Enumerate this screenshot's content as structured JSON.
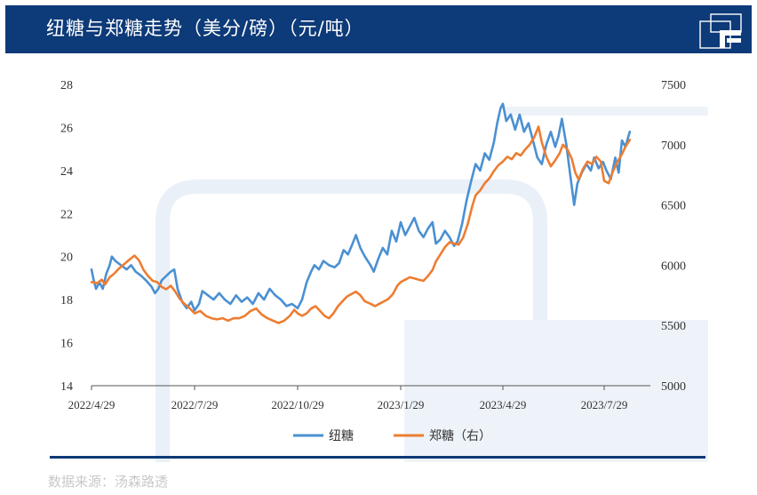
{
  "header": {
    "title": "纽糖与郑糖走势（美分/磅）（元/吨）"
  },
  "source": {
    "text": "数据来源：汤森路透"
  },
  "colors": {
    "header_bg": "#0d3a78",
    "series_ice": "#4a90d2",
    "series_zce": "#ed7d31",
    "axis": "#555555"
  },
  "chart_data": {
    "type": "line",
    "title": "纽糖与郑糖走势（美分/磅）（元/吨）",
    "x_tick_labels": [
      "2022/4/29",
      "2022/7/29",
      "2022/10/29",
      "2023/1/29",
      "2023/4/29",
      "2023/7/29"
    ],
    "x_range": [
      "2022/4/29",
      "2023/8/21"
    ],
    "y_left": {
      "ticks": [
        "14",
        "16",
        "18",
        "20",
        "22",
        "24",
        "26",
        "28"
      ],
      "range": [
        14,
        28
      ],
      "unit": "美分/磅"
    },
    "y_right": {
      "ticks": [
        "5000",
        "5500",
        "6000",
        "6500",
        "7000",
        "7500"
      ],
      "range": [
        5000,
        7500
      ],
      "unit": "元/吨"
    },
    "legend_position": "bottom",
    "grid": false,
    "series": [
      {
        "name": "纽糖",
        "axis": "left",
        "points": [
          [
            "2022-04-29",
            19.4
          ],
          [
            "2022-05-01",
            18.9
          ],
          [
            "2022-05-03",
            18.5
          ],
          [
            "2022-05-06",
            18.8
          ],
          [
            "2022-05-09",
            18.5
          ],
          [
            "2022-05-12",
            19.2
          ],
          [
            "2022-05-15",
            19.6
          ],
          [
            "2022-05-17",
            20.0
          ],
          [
            "2022-05-20",
            19.8
          ],
          [
            "2022-05-25",
            19.6
          ],
          [
            "2022-05-30",
            19.4
          ],
          [
            "2022-06-03",
            19.6
          ],
          [
            "2022-06-07",
            19.3
          ],
          [
            "2022-06-12",
            19.1
          ],
          [
            "2022-06-16",
            18.9
          ],
          [
            "2022-06-21",
            18.6
          ],
          [
            "2022-06-24",
            18.3
          ],
          [
            "2022-06-27",
            18.5
          ],
          [
            "2022-06-30",
            18.9
          ],
          [
            "2022-07-04",
            19.1
          ],
          [
            "2022-07-08",
            19.3
          ],
          [
            "2022-07-11",
            19.4
          ],
          [
            "2022-07-14",
            18.5
          ],
          [
            "2022-07-18",
            17.9
          ],
          [
            "2022-07-22",
            17.6
          ],
          [
            "2022-07-26",
            17.9
          ],
          [
            "2022-07-29",
            17.5
          ],
          [
            "2022-08-02",
            17.8
          ],
          [
            "2022-08-05",
            18.4
          ],
          [
            "2022-08-10",
            18.2
          ],
          [
            "2022-08-15",
            18.0
          ],
          [
            "2022-08-20",
            18.3
          ],
          [
            "2022-08-25",
            18.0
          ],
          [
            "2022-08-30",
            17.8
          ],
          [
            "2022-09-04",
            18.2
          ],
          [
            "2022-09-09",
            17.9
          ],
          [
            "2022-09-14",
            18.1
          ],
          [
            "2022-09-19",
            17.8
          ],
          [
            "2022-09-24",
            18.3
          ],
          [
            "2022-09-29",
            18.0
          ],
          [
            "2022-10-04",
            18.5
          ],
          [
            "2022-10-09",
            18.2
          ],
          [
            "2022-10-14",
            18.0
          ],
          [
            "2022-10-19",
            17.7
          ],
          [
            "2022-10-24",
            17.8
          ],
          [
            "2022-10-29",
            17.6
          ],
          [
            "2022-11-02",
            18.0
          ],
          [
            "2022-11-06",
            18.8
          ],
          [
            "2022-11-10",
            19.3
          ],
          [
            "2022-11-13",
            19.6
          ],
          [
            "2022-11-17",
            19.4
          ],
          [
            "2022-11-21",
            19.8
          ],
          [
            "2022-11-26",
            19.6
          ],
          [
            "2022-12-01",
            19.5
          ],
          [
            "2022-12-05",
            19.7
          ],
          [
            "2022-12-09",
            20.3
          ],
          [
            "2022-12-13",
            20.1
          ],
          [
            "2022-12-17",
            20.6
          ],
          [
            "2022-12-20",
            21.0
          ],
          [
            "2022-12-24",
            20.4
          ],
          [
            "2022-12-28",
            20.0
          ],
          [
            "2023-01-02",
            19.6
          ],
          [
            "2023-01-05",
            19.3
          ],
          [
            "2023-01-09",
            19.9
          ],
          [
            "2023-01-13",
            20.4
          ],
          [
            "2023-01-17",
            20.1
          ],
          [
            "2023-01-21",
            21.2
          ],
          [
            "2023-01-25",
            20.7
          ],
          [
            "2023-01-29",
            21.6
          ],
          [
            "2023-02-02",
            21.0
          ],
          [
            "2023-02-06",
            21.4
          ],
          [
            "2023-02-10",
            21.8
          ],
          [
            "2023-02-14",
            21.2
          ],
          [
            "2023-02-18",
            20.9
          ],
          [
            "2023-02-22",
            21.3
          ],
          [
            "2023-02-26",
            21.6
          ],
          [
            "2023-03-01",
            20.6
          ],
          [
            "2023-03-05",
            20.8
          ],
          [
            "2023-03-09",
            21.2
          ],
          [
            "2023-03-13",
            20.9
          ],
          [
            "2023-03-17",
            20.5
          ],
          [
            "2023-03-20",
            20.7
          ],
          [
            "2023-03-24",
            21.5
          ],
          [
            "2023-03-28",
            22.6
          ],
          [
            "2023-04-01",
            23.5
          ],
          [
            "2023-04-05",
            24.3
          ],
          [
            "2023-04-09",
            24.0
          ],
          [
            "2023-04-13",
            24.8
          ],
          [
            "2023-04-17",
            24.5
          ],
          [
            "2023-04-21",
            25.3
          ],
          [
            "2023-04-24",
            26.2
          ],
          [
            "2023-04-27",
            26.9
          ],
          [
            "2023-04-29",
            27.1
          ],
          [
            "2023-05-02",
            26.3
          ],
          [
            "2023-05-06",
            26.6
          ],
          [
            "2023-05-10",
            25.9
          ],
          [
            "2023-05-14",
            26.6
          ],
          [
            "2023-05-18",
            25.8
          ],
          [
            "2023-05-22",
            26.2
          ],
          [
            "2023-05-26",
            25.4
          ],
          [
            "2023-05-30",
            24.6
          ],
          [
            "2023-06-03",
            24.3
          ],
          [
            "2023-06-07",
            25.2
          ],
          [
            "2023-06-11",
            25.8
          ],
          [
            "2023-06-15",
            25.1
          ],
          [
            "2023-06-18",
            25.6
          ],
          [
            "2023-06-21",
            26.4
          ],
          [
            "2023-06-25",
            25.2
          ],
          [
            "2023-06-29",
            23.6
          ],
          [
            "2023-07-02",
            22.4
          ],
          [
            "2023-07-05",
            23.4
          ],
          [
            "2023-07-09",
            23.9
          ],
          [
            "2023-07-13",
            24.3
          ],
          [
            "2023-07-17",
            24.0
          ],
          [
            "2023-07-20",
            24.6
          ],
          [
            "2023-07-24",
            24.1
          ],
          [
            "2023-07-28",
            24.4
          ],
          [
            "2023-07-31",
            24.0
          ],
          [
            "2023-08-04",
            23.6
          ],
          [
            "2023-08-08",
            24.6
          ],
          [
            "2023-08-11",
            23.9
          ],
          [
            "2023-08-14",
            25.4
          ],
          [
            "2023-08-17",
            25.1
          ],
          [
            "2023-08-21",
            25.8
          ]
        ]
      },
      {
        "name": "郑糖（右）",
        "axis": "right",
        "points": [
          [
            "2022-04-29",
            5860
          ],
          [
            "2022-05-04",
            5850
          ],
          [
            "2022-05-08",
            5880
          ],
          [
            "2022-05-11",
            5840
          ],
          [
            "2022-05-15",
            5900
          ],
          [
            "2022-05-19",
            5930
          ],
          [
            "2022-05-23",
            5970
          ],
          [
            "2022-05-28",
            6010
          ],
          [
            "2022-06-02",
            6050
          ],
          [
            "2022-06-06",
            6080
          ],
          [
            "2022-06-10",
            6040
          ],
          [
            "2022-06-14",
            5960
          ],
          [
            "2022-06-18",
            5910
          ],
          [
            "2022-06-22",
            5870
          ],
          [
            "2022-06-26",
            5860
          ],
          [
            "2022-06-30",
            5820
          ],
          [
            "2022-07-04",
            5800
          ],
          [
            "2022-07-08",
            5830
          ],
          [
            "2022-07-12",
            5780
          ],
          [
            "2022-07-16",
            5720
          ],
          [
            "2022-07-20",
            5680
          ],
          [
            "2022-07-24",
            5650
          ],
          [
            "2022-07-29",
            5600
          ],
          [
            "2022-08-03",
            5620
          ],
          [
            "2022-08-08",
            5580
          ],
          [
            "2022-08-13",
            5560
          ],
          [
            "2022-08-18",
            5550
          ],
          [
            "2022-08-23",
            5560
          ],
          [
            "2022-08-28",
            5540
          ],
          [
            "2022-09-02",
            5560
          ],
          [
            "2022-09-07",
            5560
          ],
          [
            "2022-09-12",
            5580
          ],
          [
            "2022-09-17",
            5620
          ],
          [
            "2022-09-22",
            5640
          ],
          [
            "2022-09-27",
            5590
          ],
          [
            "2022-10-02",
            5560
          ],
          [
            "2022-10-07",
            5540
          ],
          [
            "2022-10-12",
            5520
          ],
          [
            "2022-10-17",
            5540
          ],
          [
            "2022-10-22",
            5580
          ],
          [
            "2022-10-26",
            5630
          ],
          [
            "2022-10-29",
            5600
          ],
          [
            "2022-11-02",
            5580
          ],
          [
            "2022-11-06",
            5600
          ],
          [
            "2022-11-10",
            5640
          ],
          [
            "2022-11-14",
            5660
          ],
          [
            "2022-11-18",
            5620
          ],
          [
            "2022-11-22",
            5580
          ],
          [
            "2022-11-26",
            5560
          ],
          [
            "2022-11-30",
            5600
          ],
          [
            "2022-12-04",
            5660
          ],
          [
            "2022-12-08",
            5700
          ],
          [
            "2022-12-12",
            5740
          ],
          [
            "2022-12-16",
            5760
          ],
          [
            "2022-12-20",
            5780
          ],
          [
            "2022-12-24",
            5750
          ],
          [
            "2022-12-28",
            5700
          ],
          [
            "2023-01-02",
            5680
          ],
          [
            "2023-01-06",
            5660
          ],
          [
            "2023-01-10",
            5680
          ],
          [
            "2023-01-14",
            5700
          ],
          [
            "2023-01-18",
            5720
          ],
          [
            "2023-01-22",
            5760
          ],
          [
            "2023-01-26",
            5830
          ],
          [
            "2023-01-29",
            5860
          ],
          [
            "2023-02-02",
            5880
          ],
          [
            "2023-02-06",
            5900
          ],
          [
            "2023-02-10",
            5890
          ],
          [
            "2023-02-14",
            5880
          ],
          [
            "2023-02-18",
            5870
          ],
          [
            "2023-02-22",
            5910
          ],
          [
            "2023-02-26",
            5960
          ],
          [
            "2023-03-01",
            6030
          ],
          [
            "2023-03-05",
            6090
          ],
          [
            "2023-03-09",
            6150
          ],
          [
            "2023-03-13",
            6190
          ],
          [
            "2023-03-17",
            6180
          ],
          [
            "2023-03-21",
            6170
          ],
          [
            "2023-03-25",
            6230
          ],
          [
            "2023-03-29",
            6340
          ],
          [
            "2023-04-02",
            6490
          ],
          [
            "2023-04-05",
            6580
          ],
          [
            "2023-04-09",
            6620
          ],
          [
            "2023-04-13",
            6680
          ],
          [
            "2023-04-17",
            6720
          ],
          [
            "2023-04-21",
            6780
          ],
          [
            "2023-04-25",
            6830
          ],
          [
            "2023-04-29",
            6860
          ],
          [
            "2023-05-03",
            6900
          ],
          [
            "2023-05-07",
            6880
          ],
          [
            "2023-05-11",
            6930
          ],
          [
            "2023-05-15",
            6910
          ],
          [
            "2023-05-19",
            6960
          ],
          [
            "2023-05-23",
            7000
          ],
          [
            "2023-05-27",
            7060
          ],
          [
            "2023-05-31",
            7150
          ],
          [
            "2023-06-03",
            7020
          ],
          [
            "2023-06-07",
            6900
          ],
          [
            "2023-06-11",
            6820
          ],
          [
            "2023-06-15",
            6870
          ],
          [
            "2023-06-19",
            6930
          ],
          [
            "2023-06-22",
            7000
          ],
          [
            "2023-06-26",
            6960
          ],
          [
            "2023-06-30",
            6880
          ],
          [
            "2023-07-03",
            6770
          ],
          [
            "2023-07-06",
            6710
          ],
          [
            "2023-07-10",
            6800
          ],
          [
            "2023-07-14",
            6860
          ],
          [
            "2023-07-18",
            6840
          ],
          [
            "2023-07-22",
            6900
          ],
          [
            "2023-07-26",
            6860
          ],
          [
            "2023-07-29",
            6700
          ],
          [
            "2023-08-02",
            6680
          ],
          [
            "2023-08-06",
            6780
          ],
          [
            "2023-08-10",
            6860
          ],
          [
            "2023-08-14",
            6920
          ],
          [
            "2023-08-17",
            6980
          ],
          [
            "2023-08-21",
            7040
          ]
        ]
      }
    ]
  }
}
